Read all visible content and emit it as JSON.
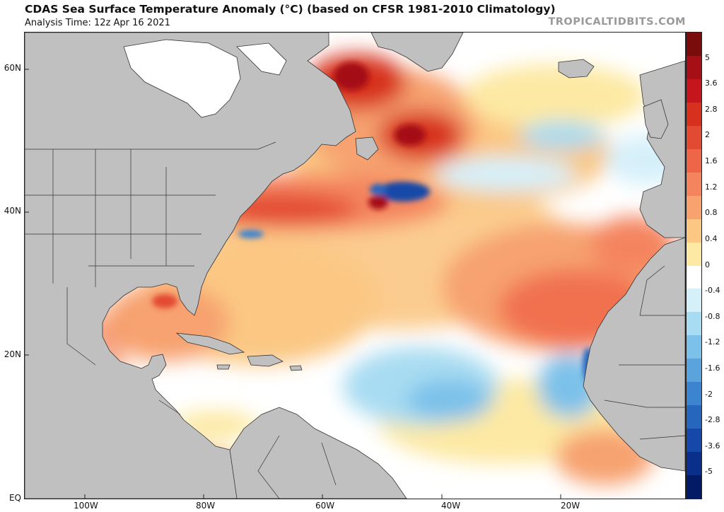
{
  "header": {
    "title": "CDAS Sea Surface Temperature Anomaly (°C) (based on CFSR 1981-2010 Climatology)",
    "analysis_time": "Analysis Time: 12z Apr 16 2021",
    "brand": "TROPICALTIDBITS.COM"
  },
  "map": {
    "lat_labels": [
      "60N",
      "40N",
      "20N",
      "EQ"
    ],
    "lon_labels": [
      "100W",
      "80W",
      "60W",
      "40W",
      "20W"
    ],
    "colors": {
      "land": "#c0c0c0",
      "ice": "#ffffff",
      "ocean_neutral": "#ffffff",
      "border": "#333333"
    }
  },
  "colorbar": {
    "labels": [
      "5",
      "3.6",
      "2.8",
      "2",
      "1.6",
      "1.2",
      "0.8",
      "0.4",
      "0",
      "-0.4",
      "-0.8",
      "-1.2",
      "-1.6",
      "-2",
      "-2.8",
      "-3.6",
      "-5"
    ],
    "colors": [
      "#7a0c0c",
      "#a50f15",
      "#c4161c",
      "#d7301f",
      "#e34a33",
      "#ef6548",
      "#f4845e",
      "#f7a26f",
      "#fbc783",
      "#fde9a3",
      "#ffffff",
      "#d6f0fa",
      "#a8dcf2",
      "#7cc1ea",
      "#5aa3dd",
      "#3c84cf",
      "#2666bd",
      "#1548a8",
      "#0a2f8a",
      "#031a66"
    ]
  }
}
